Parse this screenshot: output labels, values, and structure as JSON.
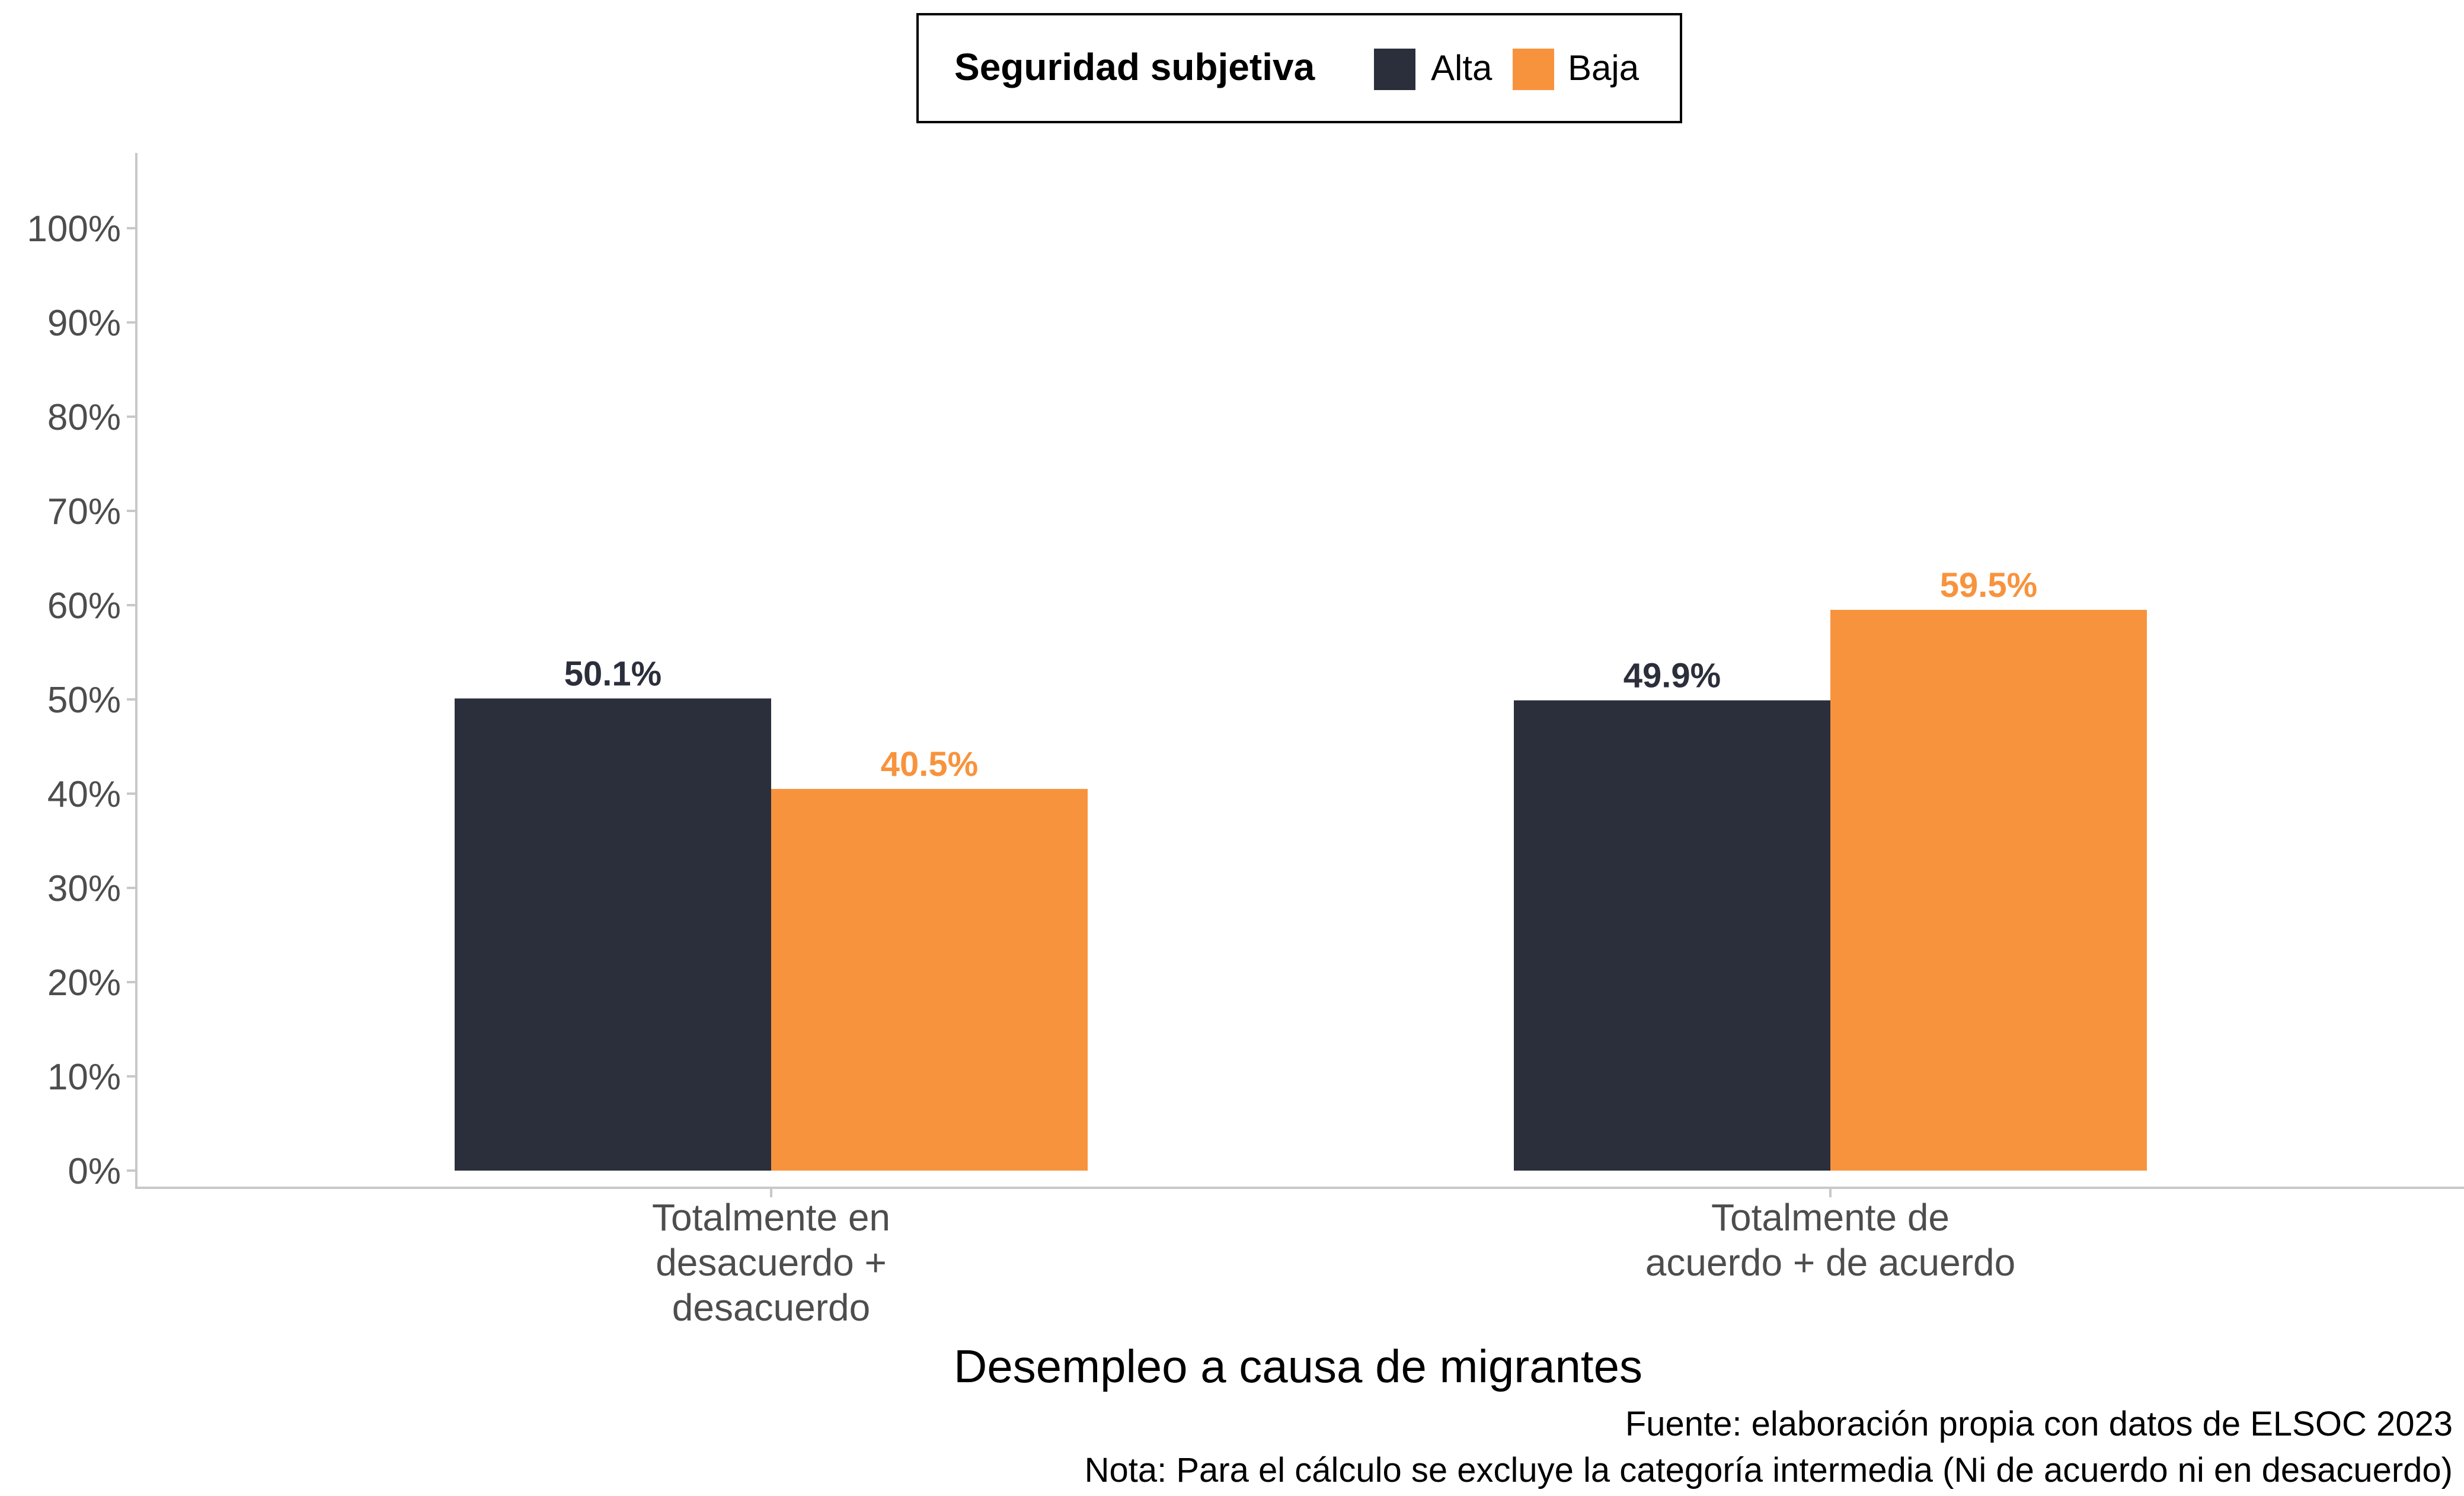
{
  "legend": {
    "title": "Seguridad subjetiva",
    "items": [
      "Alta",
      "Baja"
    ]
  },
  "colors": {
    "Alta": "#2b2f3b",
    "Baja": "#f8933d",
    "axis": "#c8c8c8",
    "tick_text": "#4d4d4d"
  },
  "chart_data": {
    "type": "bar",
    "categories": [
      [
        "Totalmente en",
        "desacuerdo +",
        "desacuerdo"
      ],
      [
        "Totalmente de",
        "acuerdo + de acuerdo"
      ]
    ],
    "series": [
      {
        "name": "Alta",
        "values": [
          50.1,
          49.9
        ],
        "labels": [
          "50.1%",
          "49.9%"
        ]
      },
      {
        "name": "Baja",
        "values": [
          40.5,
          59.5
        ],
        "labels": [
          "40.5%",
          "59.5%"
        ]
      }
    ],
    "xlabel": "Desempleo a causa de migrantes",
    "ylabel": "",
    "ylim": [
      0,
      100
    ],
    "yticks": [
      0,
      10,
      20,
      30,
      40,
      50,
      60,
      70,
      80,
      90,
      100
    ],
    "ytick_labels": [
      "0%",
      "10%",
      "20%",
      "30%",
      "40%",
      "50%",
      "60%",
      "70%",
      "80%",
      "90%",
      "100%"
    ],
    "grid": false,
    "legend_position": "top"
  },
  "caption": {
    "source": "Fuente: elaboración propia con datos de ELSOC 2023",
    "note": "Nota: Para el cálculo se excluye la categoría intermedia (Ni de acuerdo ni en desacuerdo)"
  }
}
